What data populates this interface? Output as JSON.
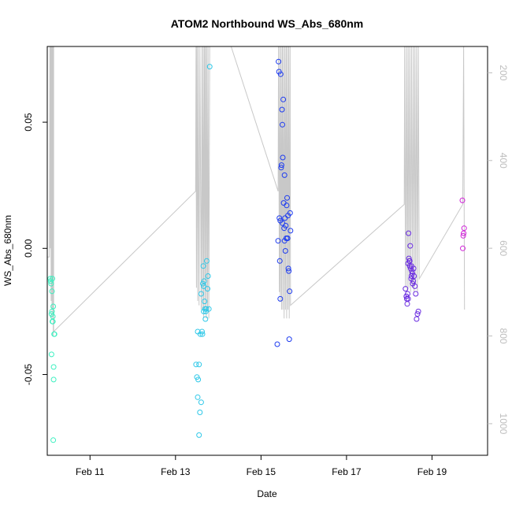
{
  "chart_data": {
    "type": "scatter",
    "title": "ATOM2 Northbound WS_Abs_680nm",
    "xlabel": "Date",
    "ylabel": "WS_Abs_680nm",
    "xlim": [
      10.0,
      20.3
    ],
    "ylim": [
      -0.082,
      0.08
    ],
    "x_tick_labels": [
      "Feb 11",
      "Feb 13",
      "Feb 15",
      "Feb 17",
      "Feb 19"
    ],
    "x_tick_values": [
      11,
      13,
      15,
      17,
      19
    ],
    "y_ticks": [
      -0.05,
      0.0,
      0.05
    ],
    "y_tick_labels": [
      "-0.05",
      "0.00",
      "0.05"
    ],
    "right_axis": {
      "ylim": [
        1072,
        140
      ],
      "ticks": [
        200,
        400,
        600,
        800,
        1000
      ],
      "color": "#bdbdbd"
    },
    "grid": false,
    "legend": "none",
    "series": [
      {
        "color": "#3cf0c0",
        "x": [
          10.07,
          10.08,
          10.09,
          10.1,
          10.1,
          10.11,
          10.11,
          10.12,
          10.13,
          10.13,
          10.14,
          10.14,
          10.15,
          10.15,
          10.16,
          10.17,
          10.12
        ],
        "y": [
          -0.012,
          -0.013,
          -0.014,
          -0.026,
          -0.042,
          -0.017,
          -0.025,
          -0.012,
          -0.029,
          -0.027,
          -0.076,
          -0.023,
          -0.047,
          -0.052,
          -0.034,
          -0.034,
          -0.029
        ]
      },
      {
        "color": "#2ec8e8",
        "x": [
          13.48,
          13.5,
          13.52,
          13.53,
          13.55,
          13.57,
          13.6,
          13.62,
          13.63,
          13.65,
          13.66,
          13.67,
          13.68,
          13.7,
          13.71,
          13.72,
          13.73,
          13.75,
          13.76,
          13.78,
          13.8,
          13.52,
          13.55,
          13.58,
          13.6,
          13.64,
          13.66,
          13.69
        ],
        "y": [
          -0.046,
          -0.051,
          -0.059,
          -0.052,
          -0.074,
          -0.065,
          -0.061,
          -0.033,
          -0.034,
          -0.007,
          -0.015,
          -0.013,
          -0.021,
          -0.028,
          -0.025,
          -0.024,
          -0.005,
          -0.016,
          -0.011,
          -0.024,
          0.072,
          -0.033,
          -0.046,
          -0.034,
          -0.018,
          -0.014,
          -0.025,
          -0.024
        ]
      },
      {
        "color": "#1e3cf0",
        "x": [
          15.38,
          15.4,
          15.41,
          15.42,
          15.43,
          15.44,
          15.45,
          15.46,
          15.47,
          15.48,
          15.49,
          15.5,
          15.51,
          15.52,
          15.53,
          15.54,
          15.55,
          15.56,
          15.57,
          15.58,
          15.59,
          15.6,
          15.61,
          15.62,
          15.63,
          15.64,
          15.65,
          15.66,
          15.67,
          15.68,
          15.69,
          15.45,
          15.5,
          15.55,
          15.62
        ],
        "y": [
          -0.038,
          0.003,
          0.074,
          0.07,
          0.012,
          -0.005,
          -0.02,
          0.069,
          0.032,
          0.033,
          0.055,
          0.049,
          0.036,
          0.059,
          0.018,
          0.008,
          0.029,
          0.012,
          -0.001,
          0.009,
          0.004,
          0.017,
          0.02,
          0.004,
          0.013,
          -0.008,
          -0.009,
          -0.036,
          -0.017,
          0.014,
          0.007,
          0.011,
          0.01,
          0.003,
          0.004
        ]
      },
      {
        "color": "#6a2ce0",
        "x": [
          18.38,
          18.4,
          18.41,
          18.42,
          18.43,
          18.44,
          18.45,
          18.46,
          18.47,
          18.48,
          18.49,
          18.5,
          18.51,
          18.52,
          18.53,
          18.54,
          18.55,
          18.56,
          18.57,
          18.58,
          18.6,
          18.62,
          18.64,
          18.66,
          18.68,
          18.4,
          18.44,
          18.48,
          18.52
        ],
        "y": [
          -0.016,
          -0.019,
          -0.02,
          -0.022,
          -0.018,
          -0.02,
          0.006,
          -0.004,
          -0.005,
          -0.005,
          0.001,
          -0.008,
          -0.012,
          -0.007,
          -0.009,
          -0.01,
          -0.014,
          -0.013,
          -0.008,
          -0.011,
          -0.015,
          -0.018,
          -0.028,
          -0.026,
          -0.025,
          -0.019,
          -0.006,
          -0.007,
          -0.011
        ]
      },
      {
        "color": "#d020d8",
        "x": [
          19.71,
          19.72,
          19.73,
          19.74,
          19.75
        ],
        "y": [
          0.019,
          0.0,
          0.005,
          0.006,
          0.008
        ]
      }
    ],
    "overlay_line": {
      "color": "#c8c8c8",
      "x": [
        10.0,
        10.05,
        10.06,
        10.06,
        10.07,
        10.07,
        10.08,
        10.09,
        10.09,
        10.1,
        10.1,
        10.11,
        10.11,
        10.12,
        10.12,
        10.13,
        10.13,
        10.14,
        10.15,
        10.15,
        10.15,
        13.47,
        13.48,
        13.49,
        13.5,
        13.52,
        13.53,
        13.55,
        13.57,
        13.6,
        13.62,
        13.63,
        13.65,
        13.66,
        13.68,
        13.69,
        13.7,
        13.72,
        13.73,
        13.75,
        13.76,
        13.78,
        13.8,
        14.3,
        15.4,
        15.41,
        15.43,
        15.44,
        15.45,
        15.47,
        15.48,
        15.5,
        15.51,
        15.53,
        15.54,
        15.56,
        15.57,
        15.59,
        15.6,
        15.62,
        15.63,
        15.65,
        15.66,
        15.68,
        15.69,
        18.35,
        18.36,
        18.38,
        18.4,
        18.42,
        18.44,
        18.46,
        18.48,
        18.5,
        18.52,
        18.54,
        18.56,
        18.58,
        18.6,
        18.62,
        18.64,
        18.66,
        18.68,
        18.7,
        19.72,
        19.74,
        19.76
      ],
      "y": [
        620,
        620,
        140,
        540,
        140,
        600,
        140,
        720,
        140,
        680,
        140,
        760,
        140,
        700,
        140,
        740,
        140,
        800,
        140,
        790,
        790,
        470,
        140,
        690,
        140,
        720,
        140,
        730,
        140,
        740,
        140,
        740,
        140,
        760,
        140,
        740,
        140,
        760,
        140,
        740,
        140,
        760,
        140,
        140,
        470,
        140,
        700,
        140,
        720,
        140,
        740,
        140,
        740,
        140,
        760,
        140,
        740,
        140,
        760,
        140,
        740,
        140,
        760,
        140,
        730,
        500,
        140,
        690,
        140,
        700,
        140,
        690,
        140,
        700,
        140,
        690,
        140,
        700,
        140,
        680,
        140,
        700,
        140,
        670,
        500,
        140,
        740
      ]
    }
  }
}
